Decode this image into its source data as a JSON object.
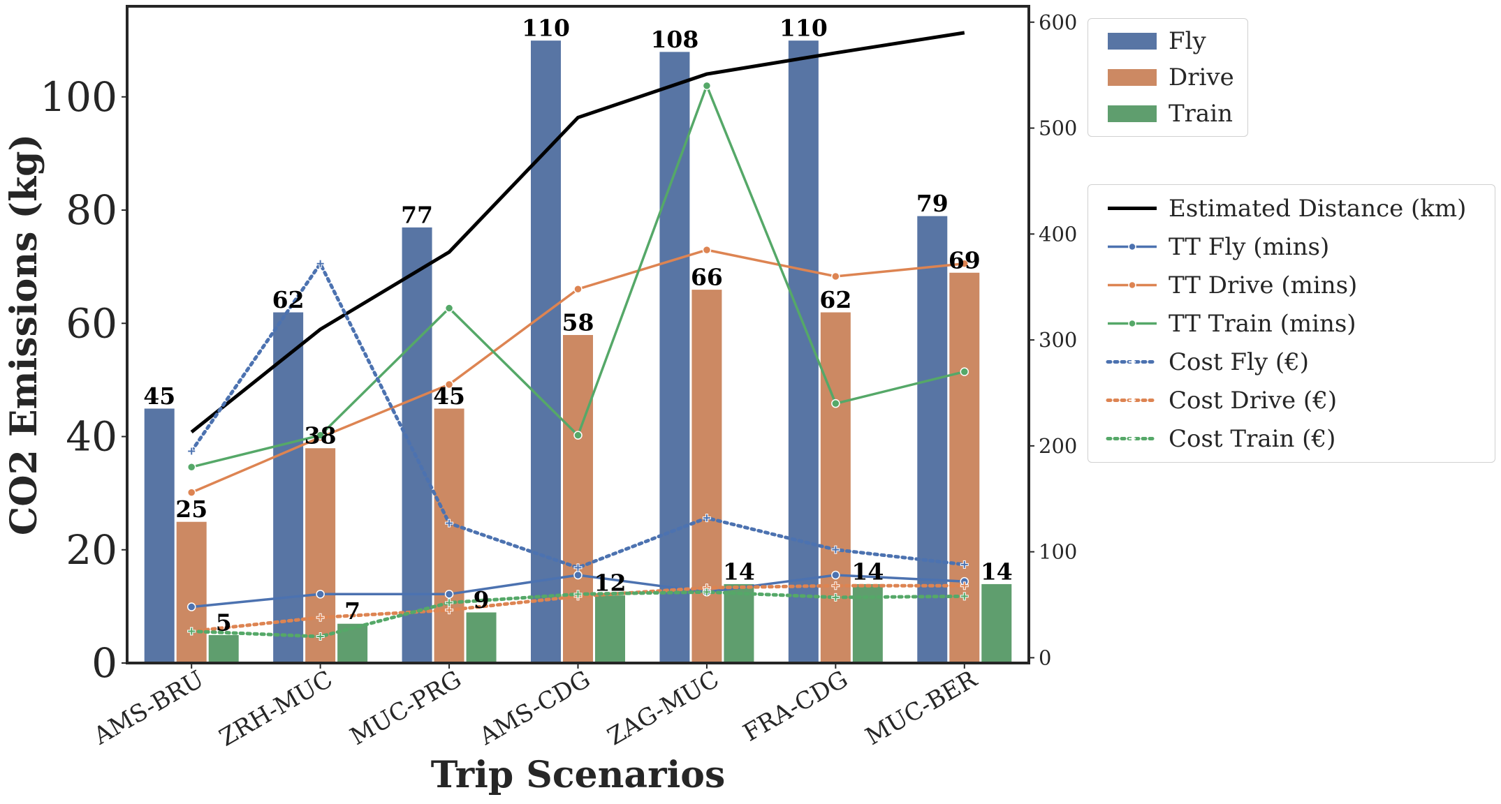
{
  "chart_data": {
    "type": "bar",
    "xlabel": "Trip Scenarios",
    "ylabel": "CO2 Emissions (kg)",
    "categories": [
      "AMS-BRU",
      "ZRH-MUC",
      "MUC-PRG",
      "AMS-CDG",
      "ZAG-MUC",
      "FRA-CDG",
      "MUC-BER"
    ],
    "ylim": [
      0,
      116
    ],
    "yticks": [
      0,
      20,
      40,
      60,
      80,
      100
    ],
    "y2lim": [
      -5,
      615
    ],
    "y2ticks": [
      0,
      100,
      200,
      300,
      400,
      500,
      600
    ],
    "grid": false,
    "bar_series": [
      {
        "name": "Fly",
        "color": "#5875a4",
        "values": [
          45,
          62,
          77,
          110,
          108,
          110,
          79
        ]
      },
      {
        "name": "Drive",
        "color": "#cc8963",
        "values": [
          25,
          38,
          45,
          58,
          66,
          62,
          69
        ]
      },
      {
        "name": "Train",
        "color": "#5f9e6e",
        "values": [
          5,
          7,
          9,
          12,
          14,
          14,
          14
        ]
      }
    ],
    "line_series": [
      {
        "name": "Estimated Distance (km)",
        "color": "#000000",
        "style": "solid",
        "marker": "none",
        "values": [
          213,
          310,
          383,
          510,
          551,
          571,
          590
        ]
      },
      {
        "name": "TT Fly (mins)",
        "color": "#4c72b0",
        "style": "solid",
        "marker": "circle",
        "values": [
          48,
          60,
          60,
          78,
          62,
          78,
          72
        ]
      },
      {
        "name": "TT Drive (mins)",
        "color": "#dd8452",
        "style": "solid",
        "marker": "circle",
        "values": [
          156,
          208,
          258,
          348,
          385,
          360,
          372
        ]
      },
      {
        "name": "TT Train (mins)",
        "color": "#55a868",
        "style": "solid",
        "marker": "circle",
        "values": [
          180,
          210,
          330,
          210,
          540,
          240,
          270
        ]
      },
      {
        "name": "Cost Fly (€)",
        "color": "#4c72b0",
        "style": "dotted",
        "marker": "plus",
        "values": [
          195,
          372,
          127,
          85,
          132,
          102,
          88
        ]
      },
      {
        "name": "Cost Drive (€)",
        "color": "#dd8452",
        "style": "dotted",
        "marker": "plus",
        "values": [
          25,
          38,
          45,
          58,
          66,
          68,
          68
        ]
      },
      {
        "name": "Cost Train (€)",
        "color": "#55a868",
        "style": "dotted",
        "marker": "plus",
        "values": [
          25,
          20,
          52,
          60,
          62,
          57,
          58
        ]
      }
    ],
    "legend": {
      "bars_placement": "upper right outside",
      "lines_placement": "right outside"
    }
  }
}
